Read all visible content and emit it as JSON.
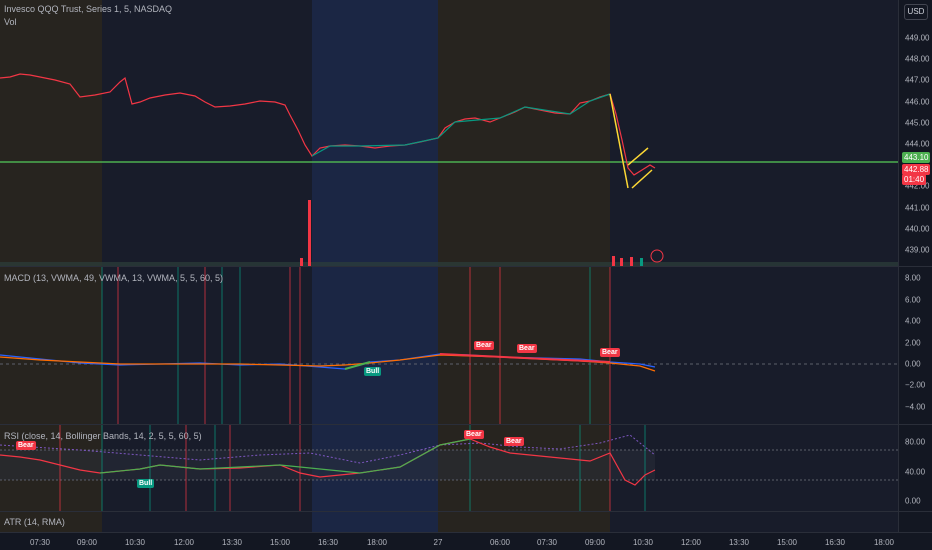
{
  "main": {
    "title": "Invesco QQQ Trust, Series 1, 5, NASDAQ",
    "vol_label": "Vol",
    "currency_button": "USD",
    "price_ticks": [
      "449.00",
      "448.00",
      "447.00",
      "446.00",
      "445.00",
      "444.00",
      "443.00",
      "442.00",
      "441.00",
      "440.00",
      "439.00"
    ],
    "level_badge": "443.10",
    "last_price_badge": "442.88",
    "countdown_badge": "01:40"
  },
  "macd": {
    "legend": "MACD (13, VWMA, 49, VWMA, 13, VWMA, 5, 5, 60, 5)",
    "ticks": [
      "8.00",
      "6.00",
      "4.00",
      "2.00",
      "0.00",
      "−2.00",
      "−4.00"
    ],
    "signals": {
      "bear1": "Bear",
      "bear2": "Bear",
      "bear3": "Bear",
      "bull": "Bull"
    }
  },
  "rsi": {
    "legend": "RSI (close, 14, Bollinger Bands, 14, 2, 5, 5, 60, 5)",
    "ticks": [
      "80.00",
      "40.00",
      "0.00"
    ],
    "signals": {
      "bear1": "Bear",
      "bear2": "Bear",
      "bear3": "Bear",
      "bull1": "Bull"
    }
  },
  "atr": {
    "legend": "ATR (14, RMA)"
  },
  "time_axis": [
    "07:30",
    "09:00",
    "10:30",
    "12:00",
    "13:30",
    "15:00",
    "16:30",
    "18:00",
    "27",
    "06:00",
    "07:30",
    "09:00",
    "10:30",
    "12:00",
    "13:30",
    "15:00",
    "16:30",
    "18:00"
  ],
  "colors": {
    "up": "#089981",
    "down": "#f23645",
    "level_line": "#4caf50",
    "session_blue": "#1e2a4a",
    "session_brown": "#2a2620"
  }
}
